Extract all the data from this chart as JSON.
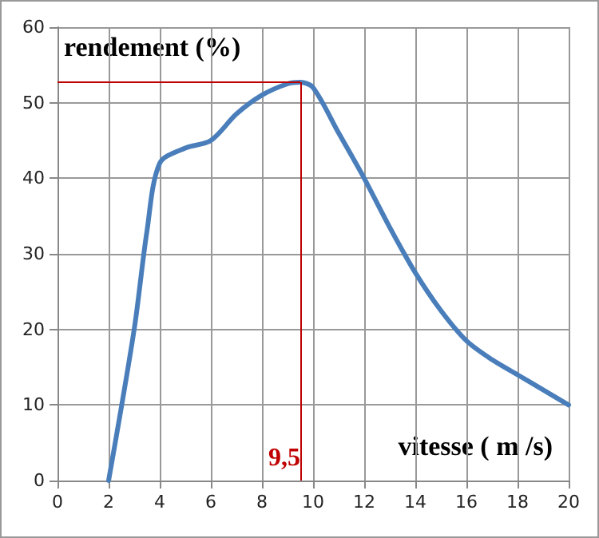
{
  "chart_data": {
    "type": "line",
    "xlabel": "vitesse ( m /s)",
    "ylabel": "rendement (%)",
    "x": [
      2,
      3,
      3.5,
      4,
      5,
      6,
      7,
      8,
      9,
      9.5,
      10,
      11,
      12,
      13,
      14,
      15,
      16,
      17,
      18,
      19,
      20
    ],
    "series": [
      {
        "color": "#4a7ebb",
        "values": [
          0,
          20,
          33,
          42,
          44,
          45,
          48.5,
          51,
          52.5,
          52.7,
          52,
          46,
          40,
          33.5,
          27.5,
          22.5,
          18.5,
          16,
          14,
          12,
          10
        ]
      }
    ],
    "xlim": [
      0,
      20
    ],
    "xticks": [
      0,
      2,
      4,
      6,
      8,
      10,
      12,
      14,
      16,
      18,
      20
    ],
    "ylim": [
      0,
      60
    ],
    "yticks": [
      0,
      10,
      20,
      30,
      40,
      50,
      60
    ],
    "ref_lines": [
      {
        "axis": "x",
        "value": 9.5,
        "label": "9,5",
        "color": "#c00000"
      },
      {
        "axis": "y",
        "value": 52.7,
        "color": "#c00000"
      }
    ],
    "grid": true,
    "marker": "none",
    "line_style": "solid"
  }
}
